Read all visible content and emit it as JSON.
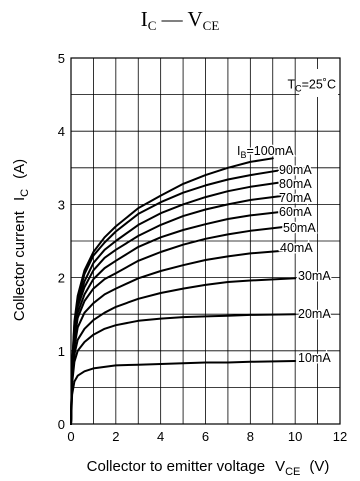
{
  "chart_data": {
    "type": "line",
    "title": {
      "main": "I",
      "main_sub": "C",
      "sep": " — ",
      "second": "V",
      "second_sub": "CE"
    },
    "xlabel": {
      "text": "Collector to emitter voltage",
      "sym": "V",
      "sub": "CE",
      "unit": "(V)"
    },
    "ylabel": {
      "text": "Collector current",
      "sym": "I",
      "sub": "C",
      "unit": "(A)"
    },
    "xlim": [
      0,
      12
    ],
    "ylim": [
      0,
      5
    ],
    "x_ticks": [
      0,
      2,
      4,
      6,
      8,
      10,
      12
    ],
    "y_ticks": [
      0,
      1,
      2,
      3,
      4,
      5
    ],
    "grid": true,
    "annotation": {
      "sym": "T",
      "sub": "C",
      "text": "=25˚C"
    },
    "legend_prefix": {
      "sym": "I",
      "sub": "B",
      "eq": "="
    },
    "series": [
      {
        "name": "100mA",
        "values": [
          [
            0,
            0
          ],
          [
            0.05,
            0.8
          ],
          [
            0.15,
            1.4
          ],
          [
            0.3,
            1.75
          ],
          [
            0.6,
            2.1
          ],
          [
            1,
            2.35
          ],
          [
            1.5,
            2.55
          ],
          [
            2,
            2.7
          ],
          [
            3,
            2.95
          ],
          [
            4,
            3.12
          ],
          [
            5,
            3.28
          ],
          [
            6,
            3.4
          ],
          [
            7,
            3.5
          ],
          [
            8,
            3.58
          ],
          [
            9,
            3.63
          ]
        ]
      },
      {
        "name": "90mA",
        "values": [
          [
            0,
            0
          ],
          [
            0.05,
            0.8
          ],
          [
            0.15,
            1.35
          ],
          [
            0.3,
            1.7
          ],
          [
            0.6,
            2.05
          ],
          [
            1,
            2.3
          ],
          [
            1.5,
            2.48
          ],
          [
            2,
            2.63
          ],
          [
            3,
            2.87
          ],
          [
            4,
            3.03
          ],
          [
            5,
            3.16
          ],
          [
            6,
            3.26
          ],
          [
            7,
            3.34
          ],
          [
            8,
            3.4
          ],
          [
            10,
            3.5
          ]
        ]
      },
      {
        "name": "80mA",
        "values": [
          [
            0,
            0
          ],
          [
            0.05,
            0.75
          ],
          [
            0.15,
            1.3
          ],
          [
            0.3,
            1.65
          ],
          [
            0.6,
            1.95
          ],
          [
            1,
            2.2
          ],
          [
            1.5,
            2.38
          ],
          [
            2,
            2.5
          ],
          [
            3,
            2.72
          ],
          [
            4,
            2.88
          ],
          [
            5,
            3.0
          ],
          [
            6,
            3.1
          ],
          [
            7,
            3.18
          ],
          [
            8,
            3.24
          ],
          [
            10,
            3.33
          ]
        ]
      },
      {
        "name": "70mA",
        "values": [
          [
            0,
            0
          ],
          [
            0.05,
            0.75
          ],
          [
            0.15,
            1.25
          ],
          [
            0.3,
            1.6
          ],
          [
            0.6,
            1.87
          ],
          [
            1,
            2.1
          ],
          [
            1.5,
            2.27
          ],
          [
            2,
            2.38
          ],
          [
            3,
            2.57
          ],
          [
            4,
            2.72
          ],
          [
            5,
            2.84
          ],
          [
            6,
            2.93
          ],
          [
            7,
            3.0
          ],
          [
            8,
            3.06
          ],
          [
            10,
            3.14
          ]
        ]
      },
      {
        "name": "60mA",
        "values": [
          [
            0,
            0
          ],
          [
            0.05,
            0.7
          ],
          [
            0.15,
            1.2
          ],
          [
            0.3,
            1.52
          ],
          [
            0.6,
            1.77
          ],
          [
            1,
            1.98
          ],
          [
            1.5,
            2.13
          ],
          [
            2,
            2.23
          ],
          [
            3,
            2.42
          ],
          [
            4,
            2.55
          ],
          [
            5,
            2.65
          ],
          [
            6,
            2.73
          ],
          [
            7,
            2.8
          ],
          [
            8,
            2.85
          ],
          [
            10,
            2.92
          ]
        ]
      },
      {
        "name": "50mA",
        "values": [
          [
            0,
            0
          ],
          [
            0.05,
            0.7
          ],
          [
            0.15,
            1.15
          ],
          [
            0.3,
            1.45
          ],
          [
            0.6,
            1.68
          ],
          [
            1,
            1.85
          ],
          [
            1.5,
            1.98
          ],
          [
            2,
            2.06
          ],
          [
            3,
            2.23
          ],
          [
            4,
            2.35
          ],
          [
            5,
            2.45
          ],
          [
            6,
            2.53
          ],
          [
            7,
            2.59
          ],
          [
            8,
            2.64
          ],
          [
            10,
            2.71
          ]
        ]
      },
      {
        "name": "40mA",
        "values": [
          [
            0,
            0
          ],
          [
            0.05,
            0.65
          ],
          [
            0.15,
            1.05
          ],
          [
            0.3,
            1.32
          ],
          [
            0.6,
            1.52
          ],
          [
            1,
            1.65
          ],
          [
            1.5,
            1.77
          ],
          [
            2,
            1.85
          ],
          [
            3,
            1.99
          ],
          [
            4,
            2.09
          ],
          [
            5,
            2.17
          ],
          [
            6,
            2.24
          ],
          [
            7,
            2.29
          ],
          [
            8,
            2.33
          ],
          [
            10,
            2.38
          ]
        ]
      },
      {
        "name": "30mA",
        "values": [
          [
            0,
            0
          ],
          [
            0.05,
            0.6
          ],
          [
            0.15,
            0.95
          ],
          [
            0.3,
            1.15
          ],
          [
            0.6,
            1.3
          ],
          [
            1,
            1.42
          ],
          [
            1.5,
            1.52
          ],
          [
            2,
            1.6
          ],
          [
            3,
            1.71
          ],
          [
            4,
            1.79
          ],
          [
            5,
            1.85
          ],
          [
            6,
            1.9
          ],
          [
            7,
            1.94
          ],
          [
            8,
            1.96
          ],
          [
            10,
            1.99
          ]
        ]
      },
      {
        "name": "20mA",
        "values": [
          [
            0,
            0
          ],
          [
            0.05,
            0.55
          ],
          [
            0.15,
            0.85
          ],
          [
            0.3,
            1.0
          ],
          [
            0.6,
            1.12
          ],
          [
            1,
            1.22
          ],
          [
            1.5,
            1.3
          ],
          [
            2,
            1.35
          ],
          [
            3,
            1.41
          ],
          [
            4,
            1.44
          ],
          [
            5,
            1.46
          ],
          [
            6,
            1.47
          ],
          [
            7,
            1.48
          ],
          [
            8,
            1.49
          ],
          [
            10,
            1.5
          ]
        ]
      },
      {
        "name": "10mA",
        "values": [
          [
            0,
            0
          ],
          [
            0.05,
            0.4
          ],
          [
            0.15,
            0.58
          ],
          [
            0.3,
            0.66
          ],
          [
            0.6,
            0.72
          ],
          [
            1,
            0.76
          ],
          [
            1.5,
            0.78
          ],
          [
            2,
            0.8
          ],
          [
            3,
            0.81
          ],
          [
            4,
            0.82
          ],
          [
            5,
            0.83
          ],
          [
            6,
            0.84
          ],
          [
            7,
            0.84
          ],
          [
            8,
            0.85
          ],
          [
            10,
            0.86
          ]
        ]
      }
    ]
  }
}
